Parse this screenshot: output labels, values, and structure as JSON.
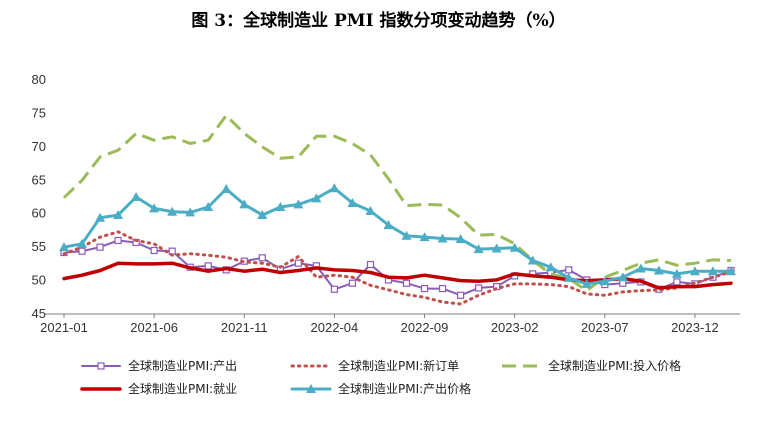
{
  "chart_data": {
    "type": "line",
    "title": "图 3：全球制造业 PMI 指数分项变动趋势（%）",
    "xlabel": "",
    "ylabel": "",
    "ylim": [
      45,
      80
    ],
    "yticks": [
      45,
      50,
      55,
      60,
      65,
      70,
      75,
      80
    ],
    "x": [
      "2021-01",
      "2021-02",
      "2021-03",
      "2021-04",
      "2021-05",
      "2021-06",
      "2021-07",
      "2021-08",
      "2021-09",
      "2021-10",
      "2021-11",
      "2021-12",
      "2022-01",
      "2022-02",
      "2022-03",
      "2022-04",
      "2022-05",
      "2022-06",
      "2022-07",
      "2022-08",
      "2022-09",
      "2022-10",
      "2022-11",
      "2022-12",
      "2023-01",
      "2023-02",
      "2023-03",
      "2023-04",
      "2023-05",
      "2023-06",
      "2023-07",
      "2023-08",
      "2023-09",
      "2023-10",
      "2023-11",
      "2023-12",
      "2024-01",
      "2024-02"
    ],
    "xtick_labels": [
      "2021-01",
      "2021-06",
      "2021-11",
      "2022-04",
      "2022-09",
      "2023-02",
      "2023-07",
      "2023-12"
    ],
    "grid": false,
    "legend_position": "bottom",
    "series": [
      {
        "name": "全球制造业PMI:产出",
        "color": "#8A5CB8",
        "style": "line-open-square",
        "values": [
          54.2,
          54.4,
          55.0,
          56.0,
          55.7,
          54.5,
          54.4,
          52.0,
          52.2,
          51.6,
          52.9,
          53.4,
          51.7,
          52.6,
          52.2,
          48.7,
          49.6,
          52.4,
          50.1,
          49.6,
          48.8,
          48.8,
          47.8,
          48.9,
          49.1,
          50.7,
          51.0,
          51.2,
          51.6,
          50.1,
          49.4,
          49.6,
          49.8,
          48.7,
          49.8,
          49.5,
          50.5,
          51.5
        ]
      },
      {
        "name": "全球制造业PMI:新订单",
        "color": "#C0504D",
        "style": "dotted",
        "values": [
          54.0,
          55.0,
          56.5,
          57.3,
          56.0,
          55.5,
          53.8,
          54.0,
          53.8,
          53.5,
          52.8,
          52.6,
          52.0,
          53.6,
          50.5,
          50.8,
          50.5,
          49.3,
          48.6,
          47.9,
          47.5,
          46.8,
          46.5,
          47.8,
          48.8,
          49.5,
          49.5,
          49.4,
          49.1,
          48.0,
          47.8,
          48.3,
          48.5,
          48.6,
          48.9,
          49.6,
          50.5,
          51.3
        ]
      },
      {
        "name": "全球制造业PMI:投入价格",
        "color": "#9BBB59",
        "style": "dashed",
        "values": [
          62.4,
          65.0,
          68.5,
          69.5,
          72.0,
          71.0,
          71.5,
          70.5,
          71.0,
          74.7,
          72.0,
          70.0,
          68.3,
          68.5,
          71.6,
          71.6,
          70.5,
          68.8,
          65.2,
          61.2,
          61.4,
          61.3,
          59.4,
          56.8,
          56.9,
          55.5,
          53.0,
          51.0,
          50.3,
          48.5,
          50.5,
          51.5,
          52.6,
          53.1,
          52.3,
          52.6,
          53.1,
          53.0
        ]
      },
      {
        "name": "全球制造业PMI:就业",
        "color": "#C00000",
        "style": "thick",
        "values": [
          50.3,
          50.8,
          51.5,
          52.6,
          52.5,
          52.5,
          52.6,
          51.9,
          51.4,
          51.8,
          51.4,
          51.7,
          51.2,
          51.5,
          51.9,
          51.6,
          51.5,
          51.2,
          50.5,
          50.4,
          50.8,
          50.4,
          50.0,
          49.9,
          50.1,
          51.0,
          50.7,
          50.5,
          50.1,
          50.0,
          50.1,
          50.3,
          49.9,
          48.9,
          49.1,
          49.1,
          49.4,
          49.6
        ]
      },
      {
        "name": "全球制造业PMI:产出价格",
        "color": "#4BACC6",
        "style": "line-filled-triangle",
        "values": [
          55.0,
          55.5,
          59.4,
          59.8,
          62.5,
          60.8,
          60.3,
          60.2,
          61.0,
          63.7,
          61.4,
          59.8,
          61.0,
          61.4,
          62.3,
          63.8,
          61.6,
          60.4,
          58.3,
          56.7,
          56.5,
          56.3,
          56.2,
          54.7,
          54.8,
          54.9,
          53.0,
          52.0,
          50.4,
          49.5,
          49.9,
          50.5,
          51.8,
          51.5,
          51.0,
          51.4,
          51.4,
          51.4
        ]
      }
    ]
  }
}
